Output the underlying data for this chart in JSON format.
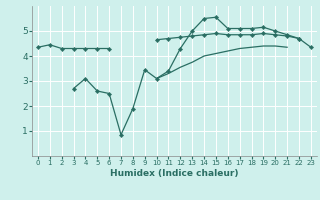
{
  "xlabel": "Humidex (Indice chaleur)",
  "x": [
    0,
    1,
    2,
    3,
    4,
    5,
    6,
    7,
    8,
    9,
    10,
    11,
    12,
    13,
    14,
    15,
    16,
    17,
    18,
    19,
    20,
    21,
    22,
    23
  ],
  "line1": [
    4.35,
    4.45,
    4.3,
    4.3,
    4.3,
    4.3,
    4.3,
    null,
    null,
    null,
    4.65,
    4.7,
    4.75,
    4.8,
    4.85,
    4.9,
    4.85,
    4.85,
    4.85,
    4.9,
    4.85,
    4.8,
    4.7,
    4.35
  ],
  "line3": [
    null,
    null,
    null,
    2.7,
    3.1,
    2.6,
    2.5,
    0.85,
    1.9,
    3.45,
    3.1,
    3.4,
    4.3,
    5.0,
    5.5,
    5.55,
    5.1,
    5.1,
    5.1,
    5.15,
    5.0,
    4.85,
    4.7,
    null
  ],
  "line4": [
    null,
    null,
    null,
    null,
    null,
    null,
    null,
    null,
    null,
    null,
    3.1,
    3.3,
    3.55,
    3.75,
    4.0,
    4.1,
    4.2,
    4.3,
    4.35,
    4.4,
    4.4,
    4.35,
    null,
    null
  ],
  "line_color": "#2a6e63",
  "bg_color": "#cff0ec",
  "grid_color": "#ffffff",
  "tick_color": "#2a6e63",
  "ylim": [
    0,
    6
  ],
  "yticks": [
    1,
    2,
    3,
    4,
    5
  ],
  "xticks": [
    0,
    1,
    2,
    3,
    4,
    5,
    6,
    7,
    8,
    9,
    10,
    11,
    12,
    13,
    14,
    15,
    16,
    17,
    18,
    19,
    20,
    21,
    22,
    23
  ]
}
